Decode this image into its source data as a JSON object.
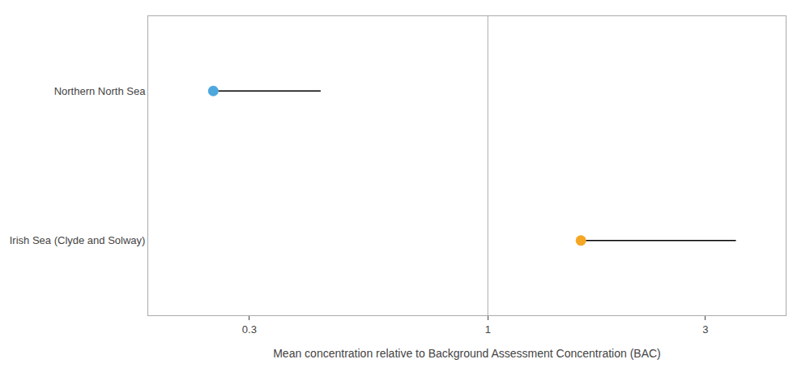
{
  "chart_data": {
    "type": "dumbbell",
    "xlabel": "Mean concentration relative to Background Assessment Concentration (BAC)",
    "categories": [
      "Irish Sea (Clyde and Solway)",
      "Northern North Sea"
    ],
    "values": [
      1.6,
      0.25
    ],
    "line_end": [
      3.5,
      0.43
    ],
    "colors": [
      "#F5A623",
      "#4EA8DE"
    ],
    "color": "#000000",
    "reference_line": {
      "value": 1.0,
      "color": "#aaaaaa"
    },
    "log": "x",
    "xlim": [
      0.18,
      4.5
    ],
    "xticks": [
      0.3,
      1,
      3
    ],
    "grid": false
  }
}
